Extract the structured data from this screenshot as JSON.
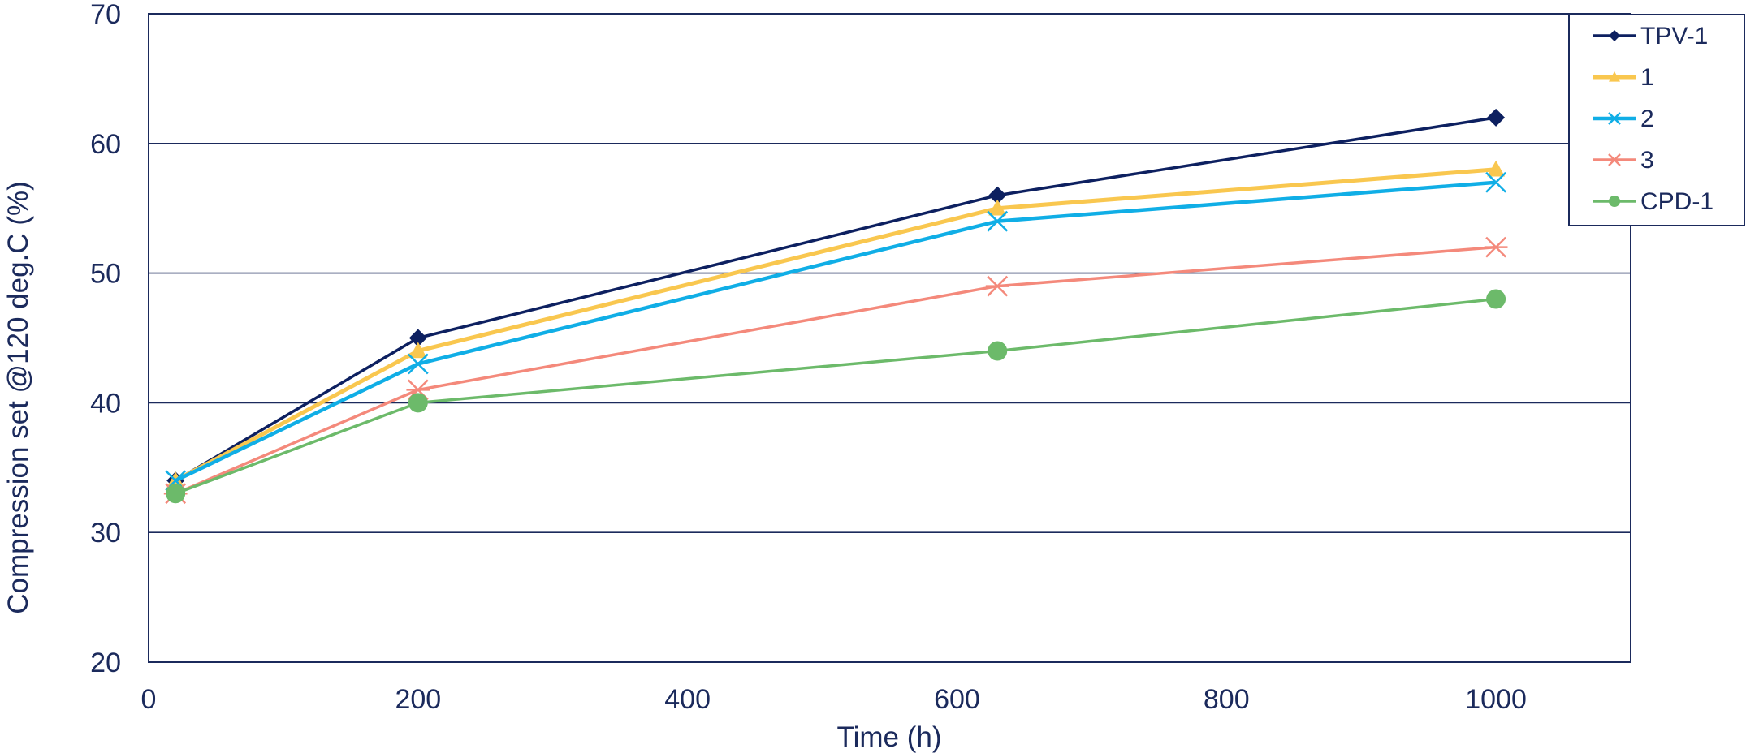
{
  "chart_data": {
    "type": "line",
    "title": "",
    "xlabel": "Time (h)",
    "ylabel": "Compression set @120 deg.C (%)",
    "xlim": [
      0,
      1100
    ],
    "ylim": [
      20,
      70
    ],
    "x_ticks": [
      0,
      200,
      400,
      600,
      800,
      1000
    ],
    "y_ticks": [
      20,
      30,
      40,
      50,
      60,
      70
    ],
    "x_tick_labels": [
      "0",
      "200",
      "400",
      "600",
      "800",
      "1000"
    ],
    "y_tick_labels": [
      "20",
      "30",
      "40",
      "50",
      "60",
      "70"
    ],
    "grid": "horizontal",
    "legend_position": "top-right",
    "series": [
      {
        "name": "TPV-1",
        "color": "#0d2060",
        "marker": "diamond",
        "x": [
          20,
          200,
          630,
          1000
        ],
        "y": [
          34,
          45,
          56,
          62
        ]
      },
      {
        "name": "1",
        "color": "#f9c74f",
        "marker": "triangle",
        "x": [
          20,
          200,
          630,
          1000
        ],
        "y": [
          34,
          44,
          55,
          58
        ]
      },
      {
        "name": "2",
        "color": "#10aee6",
        "marker": "x",
        "x": [
          20,
          200,
          630,
          1000
        ],
        "y": [
          34,
          43,
          54,
          57
        ]
      },
      {
        "name": "3",
        "color": "#f4897b",
        "marker": "star",
        "x": [
          20,
          200,
          630,
          1000
        ],
        "y": [
          33,
          41,
          49,
          52
        ]
      },
      {
        "name": "CPD-1",
        "color": "#6cba6a",
        "marker": "circle",
        "x": [
          20,
          200,
          630,
          1000
        ],
        "y": [
          33,
          40,
          44,
          48
        ]
      }
    ]
  }
}
